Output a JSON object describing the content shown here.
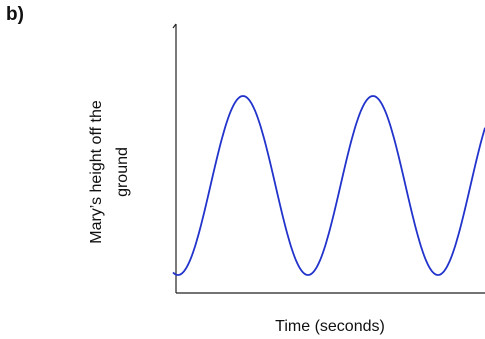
{
  "panel_label": "b)",
  "chart_data": {
    "type": "line",
    "title": "",
    "xlabel": "Time (seconds)",
    "ylabel": [
      "Mary’s height off the",
      "ground"
    ],
    "series": [
      {
        "color": "#2233cc"
      }
    ],
    "x_ticks_shown": false,
    "y_ticks_shown": false,
    "grid": false,
    "wave": {
      "shape": "sinusoid",
      "cycles": 2.4,
      "start": "minimum"
    }
  }
}
